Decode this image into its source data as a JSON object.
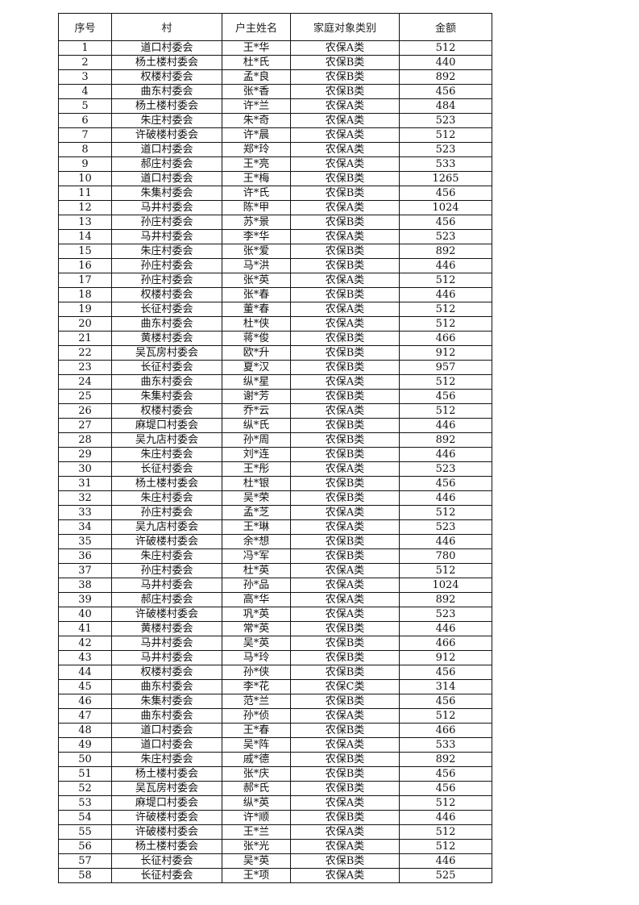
{
  "headers": [
    "序号",
    "村",
    "户主姓名",
    "家庭对象类别",
    "金额"
  ],
  "rows": [
    [
      "1",
      "道口村委会",
      "王*华",
      "农保A类",
      "512"
    ],
    [
      "2",
      "杨土楼村委会",
      "杜*氏",
      "农保B类",
      "440"
    ],
    [
      "3",
      "权楼村委会",
      "孟*良",
      "农保B类",
      "892"
    ],
    [
      "4",
      "曲东村委会",
      "张*香",
      "农保B类",
      "456"
    ],
    [
      "5",
      "杨土楼村委会",
      "许*兰",
      "农保A类",
      "484"
    ],
    [
      "6",
      "朱庄村委会",
      "朱*奇",
      "农保A类",
      "523"
    ],
    [
      "7",
      "许破楼村委会",
      "许*晨",
      "农保A类",
      "512"
    ],
    [
      "8",
      "道口村委会",
      "郑*玲",
      "农保A类",
      "523"
    ],
    [
      "9",
      "郝庄村委会",
      "王*亮",
      "农保A类",
      "533"
    ],
    [
      "10",
      "道口村委会",
      "王*梅",
      "农保B类",
      "1265"
    ],
    [
      "11",
      "朱集村委会",
      "许*氏",
      "农保B类",
      "456"
    ],
    [
      "12",
      "马井村委会",
      "陈*甲",
      "农保A类",
      "1024"
    ],
    [
      "13",
      "孙庄村委会",
      "苏*景",
      "农保B类",
      "456"
    ],
    [
      "14",
      "马井村委会",
      "李*华",
      "农保A类",
      "523"
    ],
    [
      "15",
      "朱庄村委会",
      "张*爱",
      "农保B类",
      "892"
    ],
    [
      "16",
      "孙庄村委会",
      "马*洪",
      "农保B类",
      "446"
    ],
    [
      "17",
      "孙庄村委会",
      "张*英",
      "农保A类",
      "512"
    ],
    [
      "18",
      "权楼村委会",
      "张*春",
      "农保B类",
      "446"
    ],
    [
      "19",
      "长征村委会",
      "董*春",
      "农保A类",
      "512"
    ],
    [
      "20",
      "曲东村委会",
      "杜*侠",
      "农保A类",
      "512"
    ],
    [
      "21",
      "黄楼村委会",
      "蒋*俊",
      "农保B类",
      "466"
    ],
    [
      "22",
      "吴瓦房村委会",
      "欧*升",
      "农保B类",
      "912"
    ],
    [
      "23",
      "长征村委会",
      "夏*汉",
      "农保B类",
      "957"
    ],
    [
      "24",
      "曲东村委会",
      "纵*星",
      "农保A类",
      "512"
    ],
    [
      "25",
      "朱集村委会",
      "谢*芳",
      "农保B类",
      "456"
    ],
    [
      "26",
      "权楼村委会",
      "乔*云",
      "农保A类",
      "512"
    ],
    [
      "27",
      "麻堤口村委会",
      "纵*氏",
      "农保B类",
      "446"
    ],
    [
      "28",
      "吴九店村委会",
      "孙*周",
      "农保B类",
      "892"
    ],
    [
      "29",
      "朱庄村委会",
      "刘*连",
      "农保B类",
      "446"
    ],
    [
      "30",
      "长征村委会",
      "王*彤",
      "农保A类",
      "523"
    ],
    [
      "31",
      "杨土楼村委会",
      "杜*银",
      "农保B类",
      "456"
    ],
    [
      "32",
      "朱庄村委会",
      "吴*荣",
      "农保B类",
      "446"
    ],
    [
      "33",
      "孙庄村委会",
      "孟*芝",
      "农保A类",
      "512"
    ],
    [
      "34",
      "吴九店村委会",
      "王*琳",
      "农保A类",
      "523"
    ],
    [
      "35",
      "许破楼村委会",
      "余*想",
      "农保B类",
      "446"
    ],
    [
      "36",
      "朱庄村委会",
      "冯*军",
      "农保B类",
      "780"
    ],
    [
      "37",
      "孙庄村委会",
      "杜*英",
      "农保A类",
      "512"
    ],
    [
      "38",
      "马井村委会",
      "孙*品",
      "农保A类",
      "1024"
    ],
    [
      "39",
      "郝庄村委会",
      "高*华",
      "农保A类",
      "892"
    ],
    [
      "40",
      "许破楼村委会",
      "巩*英",
      "农保A类",
      "523"
    ],
    [
      "41",
      "黄楼村委会",
      "常*英",
      "农保B类",
      "446"
    ],
    [
      "42",
      "马井村委会",
      "吴*英",
      "农保B类",
      "466"
    ],
    [
      "43",
      "马井村委会",
      "马*玲",
      "农保B类",
      "912"
    ],
    [
      "44",
      "权楼村委会",
      "孙*侠",
      "农保B类",
      "456"
    ],
    [
      "45",
      "曲东村委会",
      "李*花",
      "农保C类",
      "314"
    ],
    [
      "46",
      "朱集村委会",
      "范*兰",
      "农保B类",
      "456"
    ],
    [
      "47",
      "曲东村委会",
      "孙*侦",
      "农保A类",
      "512"
    ],
    [
      "48",
      "道口村委会",
      "王*春",
      "农保B类",
      "466"
    ],
    [
      "49",
      "道口村委会",
      "吴*阵",
      "农保A类",
      "533"
    ],
    [
      "50",
      "朱庄村委会",
      "戚*德",
      "农保B类",
      "892"
    ],
    [
      "51",
      "杨土楼村委会",
      "张*庆",
      "农保B类",
      "456"
    ],
    [
      "52",
      "吴瓦房村委会",
      "郝*氏",
      "农保B类",
      "456"
    ],
    [
      "53",
      "麻堤口村委会",
      "纵*英",
      "农保A类",
      "512"
    ],
    [
      "54",
      "许破楼村委会",
      "许*顺",
      "农保B类",
      "446"
    ],
    [
      "55",
      "许破楼村委会",
      "王*兰",
      "农保A类",
      "512"
    ],
    [
      "56",
      "杨土楼村委会",
      "张*光",
      "农保A类",
      "512"
    ],
    [
      "57",
      "长征村委会",
      "吴*英",
      "农保B类",
      "446"
    ],
    [
      "58",
      "长征村委会",
      "王*项",
      "农保A类",
      "525"
    ]
  ]
}
